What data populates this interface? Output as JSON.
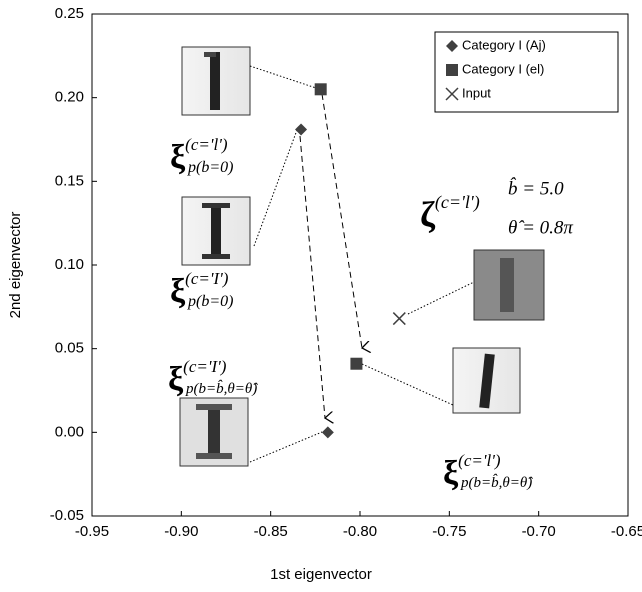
{
  "chart_data": {
    "type": "scatter",
    "xlabel": "1st eigenvector",
    "ylabel": "2nd eigenvector",
    "xlim": [
      -0.95,
      -0.65
    ],
    "ylim": [
      -0.05,
      0.25
    ],
    "xticks": [
      {
        "value": -0.95,
        "label": "-0.95"
      },
      {
        "value": -0.9,
        "label": "-0.90"
      },
      {
        "value": -0.85,
        "label": "-0.85"
      },
      {
        "value": -0.8,
        "label": "-0.80"
      },
      {
        "value": -0.75,
        "label": "-0.75"
      },
      {
        "value": -0.7,
        "label": "-0.70"
      },
      {
        "value": -0.65,
        "label": "-0.65"
      }
    ],
    "yticks": [
      {
        "value": -0.05,
        "label": "-0.05"
      },
      {
        "value": 0,
        "label": "0.00"
      },
      0.05,
      {
        "value": 0.1,
        "label": "0.10"
      },
      0.15,
      {
        "value": 0.2,
        "label": "0.20"
      },
      0.25
    ],
    "legend": "upper right",
    "grid": false,
    "series": [
      {
        "name": "Category I (Aj)",
        "color": "#404040",
        "marker": "diamond",
        "x": [
          -0.833,
          -0.818
        ],
        "y": [
          0.181,
          0.0
        ]
      },
      {
        "name": "Category I (el)",
        "color": "#404040",
        "marker": "square",
        "x": [
          -0.822,
          -0.802
        ],
        "y": [
          0.205,
          0.041
        ]
      },
      {
        "name": "Input",
        "color": "#404040",
        "marker": "x",
        "x": [
          -0.778
        ],
        "y": [
          0.068
        ]
      }
    ],
    "annotations": [
      {
        "symbol": "ξ",
        "superscript": "(c='l')",
        "subscript": "p(b=0)"
      },
      {
        "symbol": "ξ",
        "superscript": "(c='I')",
        "subscript": "p(b=0)"
      },
      {
        "symbol": "ξ",
        "superscript": "(c='I')",
        "subscript": "p(b=b̂,θ=θ̂)"
      },
      {
        "symbol": "ξ",
        "superscript": "(c='l')",
        "subscript": "p(b=b̂,θ=θ̂)"
      },
      {
        "symbol": "ζ",
        "superscript": "(c='l')",
        "params": [
          "b̂ = 5.0",
          "θ̂ = 0.8π"
        ]
      }
    ]
  }
}
